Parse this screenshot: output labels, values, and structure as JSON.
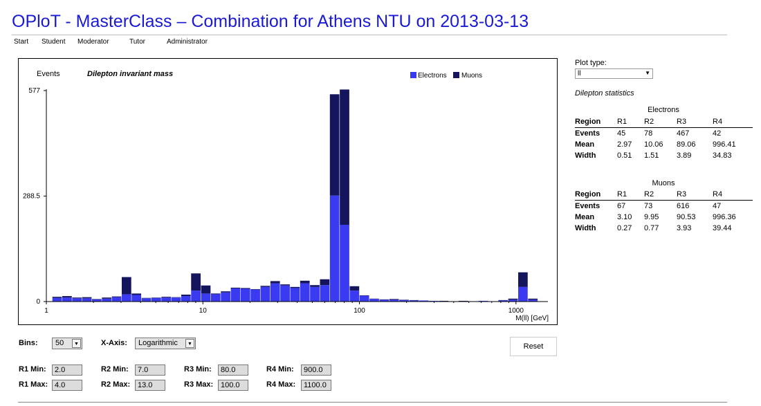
{
  "page": {
    "title": "OPloT - MasterClass – Combination for Athens NTU on 2013-03-13"
  },
  "nav": {
    "items": [
      {
        "label": "Start",
        "x": 0
      },
      {
        "label": "Student",
        "x": 40
      },
      {
        "label": "Moderator",
        "x": 92
      },
      {
        "label": "Tutor",
        "x": 167
      },
      {
        "label": "Administrator",
        "x": 221
      }
    ]
  },
  "plot_type": {
    "label": "Plot type:",
    "value": "ll"
  },
  "stats": {
    "title": "Dilepton statistics",
    "row_labels": [
      "Region",
      "Events",
      "Mean",
      "Width"
    ],
    "electrons": {
      "caption": "Electrons",
      "regions": [
        "R1",
        "R2",
        "R3",
        "R4"
      ],
      "events": [
        "45",
        "78",
        "467",
        "42"
      ],
      "mean": [
        "2.97",
        "10.06",
        "89.06",
        "996.41"
      ],
      "width": [
        "0.51",
        "1.51",
        "3.89",
        "34.83"
      ]
    },
    "muons": {
      "caption": "Muons",
      "regions": [
        "R1",
        "R2",
        "R3",
        "R4"
      ],
      "events": [
        "67",
        "73",
        "616",
        "47"
      ],
      "mean": [
        "3.10",
        "9.95",
        "90.53",
        "996.36"
      ],
      "width": [
        "0.27",
        "0.77",
        "3.93",
        "39.44"
      ]
    }
  },
  "controls": {
    "bins_label": "Bins:",
    "bins_value": "50",
    "xaxis_label": "X-Axis:",
    "xaxis_value": "Logarithmic",
    "reset_label": "Reset",
    "ranges": [
      {
        "min_label": "R1 Min:",
        "min": "2.0",
        "max_label": "R1 Max:",
        "max": "4.0"
      },
      {
        "min_label": "R2 Min:",
        "min": "7.0",
        "max_label": "R2 Max:",
        "max": "13.0"
      },
      {
        "min_label": "R3 Min:",
        "min": "80.0",
        "max_label": "R3 Max:",
        "max": "100.0"
      },
      {
        "min_label": "R4 Min:",
        "min": "900.0",
        "max_label": "R4 Max:",
        "max": "1100.0"
      }
    ]
  },
  "chart_data": {
    "type": "bar",
    "stacked": true,
    "title": "Dilepton invariant mass",
    "ylabel": "Events",
    "xlabel": "M(ll) [GeV]",
    "xscale": "log",
    "xlim": [
      1,
      1600
    ],
    "ylim": [
      0,
      577
    ],
    "y_ticks": [
      "577",
      "288.5",
      "0"
    ],
    "x_ticks": [
      "1",
      "10",
      "100",
      "1000"
    ],
    "legend": {
      "position": "top-right",
      "entries": [
        "Electrons",
        "Muons"
      ]
    },
    "colors": {
      "electrons": "#3a3af0",
      "muons": "#15155e"
    },
    "bin_count": 50,
    "series": [
      {
        "name": "Electrons",
        "values": [
          10,
          11,
          9,
          9,
          6,
          8,
          12,
          20,
          18,
          9,
          10,
          11,
          11,
          15,
          30,
          22,
          20,
          25,
          36,
          35,
          33,
          40,
          50,
          44,
          37,
          50,
          40,
          45,
          290,
          210,
          30,
          16,
          7,
          5,
          5,
          4,
          3,
          3,
          2,
          1,
          1,
          1,
          1,
          2,
          1,
          3,
          5,
          40,
          5,
          1
        ]
      },
      {
        "name": "Muons",
        "values": [
          3,
          4,
          2,
          3,
          1,
          3,
          2,
          47,
          4,
          1,
          1,
          2,
          1,
          4,
          47,
          22,
          2,
          3,
          2,
          2,
          1,
          3,
          6,
          3,
          3,
          7,
          5,
          16,
          277,
          370,
          12,
          1,
          1,
          1,
          2,
          1,
          1,
          0,
          0,
          1,
          0,
          1,
          0,
          0,
          0,
          1,
          3,
          40,
          3,
          0
        ]
      }
    ]
  }
}
